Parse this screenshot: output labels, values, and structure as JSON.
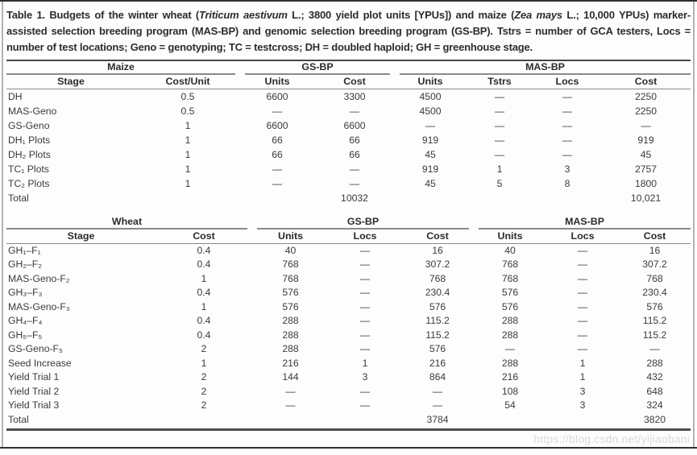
{
  "caption": {
    "part1": "Table 1. Budgets of the winter wheat (",
    "species1": "Triticum aestivum",
    "part2": " L.; 3800 yield plot units [YPUs]) and maize (",
    "species2": "Zea mays",
    "part3": " L.; 10,000 YPUs) marker-assisted selection breeding program (MAS-BP) and genomic selection breeding program (GS-BP). Tstrs = number of GCA testers, Locs = number of test locations; Geno = genotyping; TC = testcross; DH = doubled haploid; GH = greenhouse stage."
  },
  "maize": {
    "groups": [
      {
        "label": "Maize"
      },
      {
        "label": "GS-BP"
      },
      {
        "label": "MAS-BP"
      }
    ],
    "columns": [
      "Stage",
      "Cost/Unit",
      "Units",
      "Cost",
      "Units",
      "Tstrs",
      "Locs",
      "Cost"
    ],
    "rows": [
      [
        "DH",
        "0.5",
        "6600",
        "3300",
        "4500",
        "—",
        "—",
        "2250"
      ],
      [
        "MAS-Geno",
        "0.5",
        "—",
        "—",
        "4500",
        "—",
        "—",
        "2250"
      ],
      [
        "GS-Geno",
        "1",
        "6600",
        "6600",
        "—",
        "—",
        "—",
        "—"
      ],
      [
        "DH₁ Plots",
        "1",
        "66",
        "66",
        "919",
        "—",
        "—",
        "919"
      ],
      [
        "DH₂ Plots",
        "1",
        "66",
        "66",
        "45",
        "—",
        "—",
        "45"
      ],
      [
        "TC₁ Plots",
        "1",
        "—",
        "—",
        "919",
        "1",
        "3",
        "2757"
      ],
      [
        "TC₂ Plots",
        "1",
        "—",
        "—",
        "45",
        "5",
        "8",
        "1800"
      ],
      [
        "Total",
        "",
        "",
        "10032",
        "",
        "",
        "",
        "10,021"
      ]
    ]
  },
  "wheat": {
    "groups": [
      {
        "label": "Wheat"
      },
      {
        "label": "GS-BP"
      },
      {
        "label": "MAS-BP"
      }
    ],
    "columns": [
      "Stage",
      "Cost",
      "Units",
      "Locs",
      "Cost",
      "Units",
      "Locs",
      "Cost"
    ],
    "rows": [
      [
        "GH₁–F₁",
        "0.4",
        "40",
        "—",
        "16",
        "40",
        "—",
        "16"
      ],
      [
        "GH₂–F₂",
        "0.4",
        "768",
        "—",
        "307.2",
        "768",
        "—",
        "307.2"
      ],
      [
        "MAS-Geno-F₂",
        "1",
        "768",
        "—",
        "768",
        "768",
        "—",
        "768"
      ],
      [
        "GH₃–F₃",
        "0.4",
        "576",
        "—",
        "230.4",
        "576",
        "—",
        "230.4"
      ],
      [
        "MAS-Geno-F₃",
        "1",
        "576",
        "—",
        "576",
        "576",
        "—",
        "576"
      ],
      [
        "GH₄–F₄",
        "0.4",
        "288",
        "—",
        "115.2",
        "288",
        "—",
        "115.2"
      ],
      [
        "GH₅–F₅",
        "0.4",
        "288",
        "—",
        "115.2",
        "288",
        "—",
        "115.2"
      ],
      [
        "GS-Geno-F₅",
        "2",
        "288",
        "—",
        "576",
        "—",
        "—",
        "—"
      ],
      [
        "Seed Increase",
        "1",
        "216",
        "1",
        "216",
        "288",
        "1",
        "288"
      ],
      [
        "Yield Trial 1",
        "2",
        "144",
        "3",
        "864",
        "216",
        "1",
        "432"
      ],
      [
        "Yield Trial 2",
        "2",
        "—",
        "—",
        "—",
        "108",
        "3",
        "648"
      ],
      [
        "Yield Trial 3",
        "2",
        "—",
        "—",
        "—",
        "54",
        "3",
        "324"
      ],
      [
        "Total",
        "",
        "",
        "",
        "3784",
        "",
        "",
        "3820"
      ]
    ]
  },
  "watermark": "https://blog.csdn.net/yijiaobani"
}
